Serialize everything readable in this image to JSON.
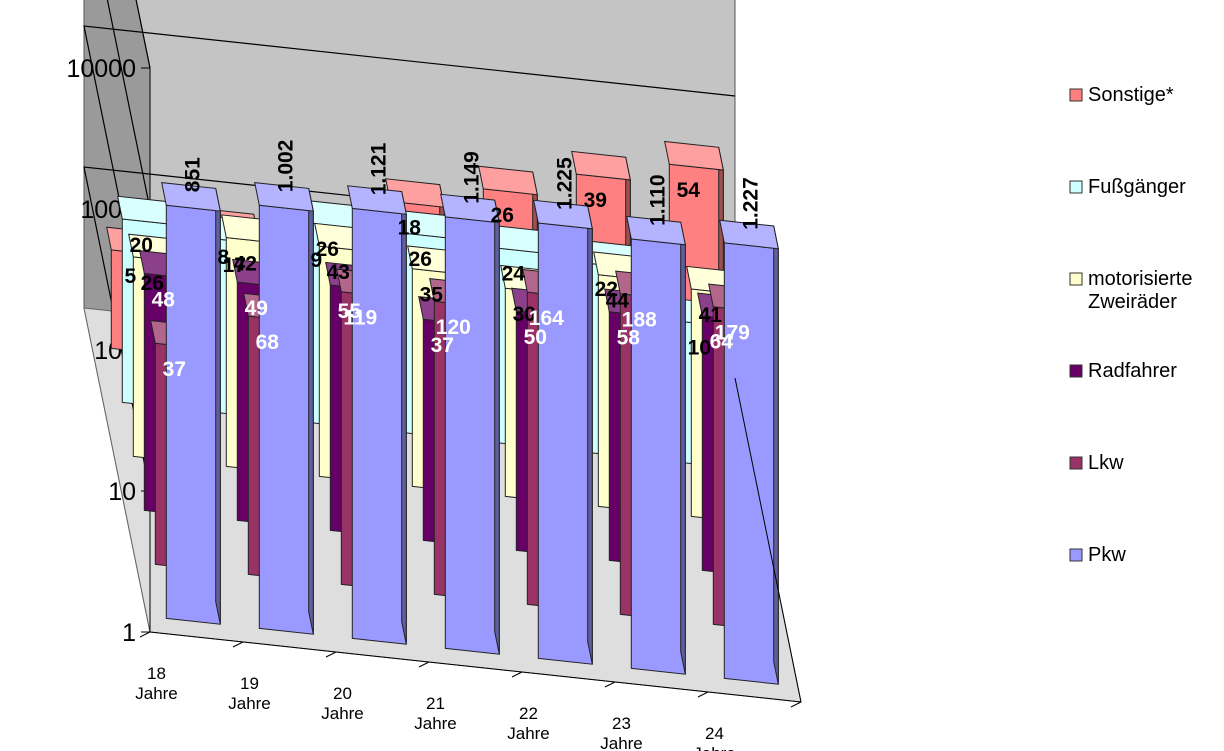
{
  "chart_data": {
    "type": "bar",
    "title": "",
    "xlabel": "",
    "ylabel": "",
    "yscale": "log",
    "ylim": [
      1,
      10000
    ],
    "yticks": [
      "1",
      "10",
      "100",
      "1000",
      "10000"
    ],
    "categories": [
      [
        "18",
        "Jahre"
      ],
      [
        "19",
        "Jahre"
      ],
      [
        "20",
        "Jahre"
      ],
      [
        "21",
        "Jahre"
      ],
      [
        "22",
        "Jahre"
      ],
      [
        "23",
        "Jahre"
      ],
      [
        "24",
        "Jahre"
      ]
    ],
    "series": [
      {
        "name": "Pkw",
        "color": "#9999FF",
        "label_color": "#000000",
        "values": [
          851,
          1002,
          1121,
          1149,
          1225,
          1110,
          1227
        ],
        "labels": [
          "851",
          "1.002",
          "1.121",
          "1.149",
          "1.225",
          "1.110",
          "1.227"
        ]
      },
      {
        "name": "Lkw",
        "color": "#993366",
        "label_color": "#FFFFFF",
        "values": [
          37,
          68,
          119,
          120,
          164,
          188,
          179
        ],
        "labels": [
          "37",
          "68",
          "119",
          "120",
          "164",
          "188",
          "179"
        ]
      },
      {
        "name": "Radfahrer",
        "color": "#660066",
        "label_color": "#FFFFFF",
        "values": [
          48,
          49,
          55,
          37,
          50,
          58,
          64
        ],
        "labels": [
          "48",
          "49",
          "55",
          "37",
          "50",
          "58",
          "64"
        ]
      },
      {
        "name": "motorisierte Zweiräder",
        "color": "#FFFFCC",
        "label_color": "#000000",
        "values": [
          26,
          42,
          43,
          35,
          30,
          44,
          41
        ],
        "labels": [
          "26",
          "42",
          "43",
          "35",
          "30",
          "44",
          "41"
        ]
      },
      {
        "name": "Fußgänger",
        "color": "#CCFFFF",
        "label_color": "#000000",
        "values": [
          20,
          17,
          26,
          26,
          24,
          22,
          10
        ],
        "labels": [
          "20",
          "17",
          "26",
          "26",
          "24",
          "22",
          "10"
        ]
      },
      {
        "name": "Sonstige*",
        "color": "#FF8080",
        "label_color": "#000000",
        "values": [
          5,
          8,
          9,
          18,
          26,
          39,
          54
        ],
        "labels": [
          "5",
          "8",
          "9",
          "18",
          "26",
          "39",
          "54"
        ]
      }
    ],
    "legend": {
      "position": "right",
      "items": [
        {
          "label": "Sonstige*",
          "color": "#FF8080"
        },
        {
          "label": "Fußgänger",
          "color": "#CCFFFF"
        },
        {
          "label": "motorisierte",
          "label2": "Zweiräder",
          "color": "#FFFFCC"
        },
        {
          "label": "Radfahrer",
          "color": "#660066"
        },
        {
          "label": "Lkw",
          "color": "#993366"
        },
        {
          "label": "Pkw",
          "color": "#9999FF"
        }
      ]
    },
    "grid": true
  }
}
